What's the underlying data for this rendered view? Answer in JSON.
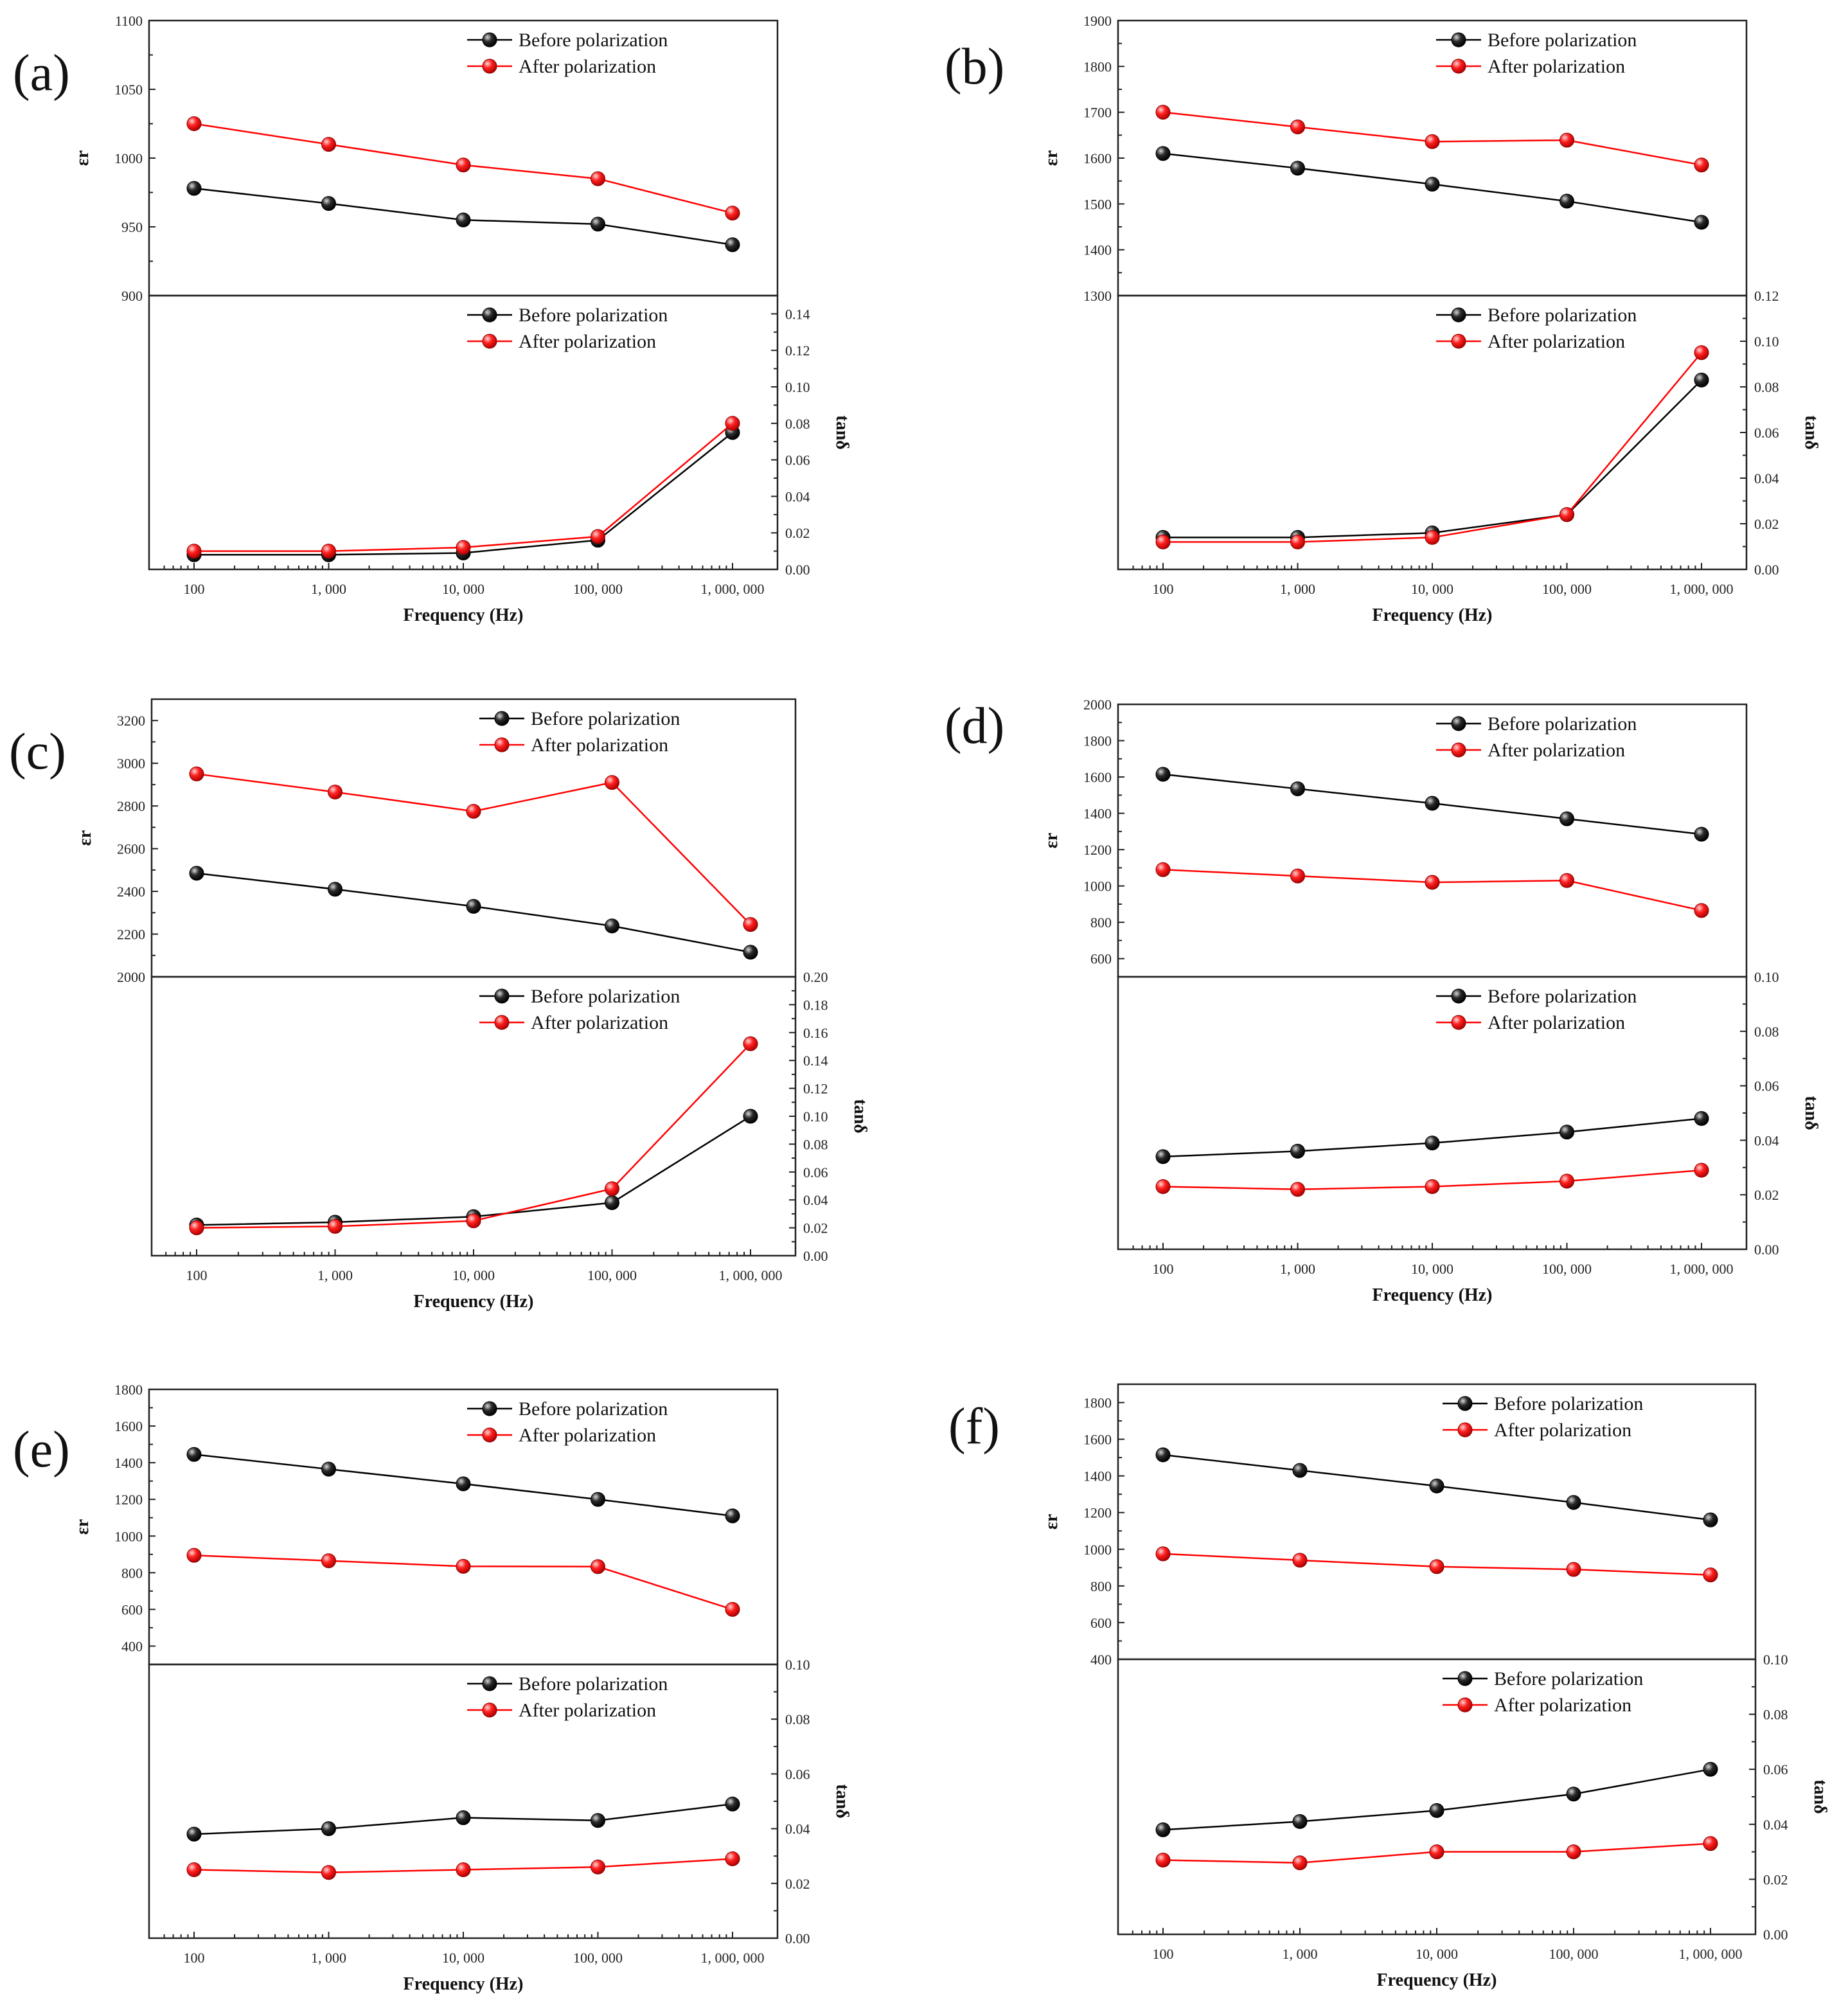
{
  "colors": {
    "before": "#000000",
    "after": "#ff0000",
    "axis": "#222222"
  },
  "chart_data": [
    {
      "panel": "(a)",
      "type": "line",
      "categories": [
        "100",
        "1, 000",
        "10, 000",
        "100, 000",
        "1, 000, 000"
      ],
      "xlabel": "Frequency (Hz)",
      "top": {
        "ylabel": "εr",
        "ylim": [
          900,
          1100
        ],
        "yticks": [
          "900",
          "950",
          "1000",
          "1050",
          "1100"
        ],
        "series": [
          {
            "name": "Before polarization",
            "values": [
              978,
              967,
              955,
              952,
              937
            ]
          },
          {
            "name": "After polarization",
            "values": [
              1025,
              1010,
              995,
              985,
              960
            ]
          }
        ]
      },
      "bottom": {
        "ylabel": "tanδ",
        "ylim": [
          0,
          0.15
        ],
        "yticks": [
          "0.00",
          "0.02",
          "0.04",
          "0.06",
          "0.08",
          "0.10",
          "0.12",
          "0.14"
        ],
        "series": [
          {
            "name": "Before polarization",
            "values": [
              0.008,
              0.008,
              0.009,
              0.016,
              0.075
            ]
          },
          {
            "name": "After polarization",
            "values": [
              0.01,
              0.01,
              0.012,
              0.018,
              0.08
            ]
          }
        ]
      }
    },
    {
      "panel": "(b)",
      "type": "line",
      "categories": [
        "100",
        "1, 000",
        "10, 000",
        "100, 000",
        "1, 000, 000"
      ],
      "xlabel": "Frequency (Hz)",
      "top": {
        "ylabel": "εr",
        "ylim": [
          1300,
          1900
        ],
        "yticks": [
          "1300",
          "1400",
          "1500",
          "1600",
          "1700",
          "1800",
          "1900"
        ],
        "series": [
          {
            "name": "Before polarization",
            "values": [
              1610,
              1578,
              1543,
              1506,
              1460
            ]
          },
          {
            "name": "After polarization",
            "values": [
              1700,
              1668,
              1636,
              1639,
              1585
            ]
          }
        ]
      },
      "bottom": {
        "ylabel": "tanδ",
        "ylim": [
          0,
          0.12
        ],
        "yticks": [
          "0.00",
          "0.02",
          "0.04",
          "0.06",
          "0.08",
          "0.10",
          "0.12"
        ],
        "series": [
          {
            "name": "Before polarization",
            "values": [
              0.014,
              0.014,
              0.016,
              0.024,
              0.083
            ]
          },
          {
            "name": "After polarization",
            "values": [
              0.012,
              0.012,
              0.014,
              0.024,
              0.095
            ]
          }
        ]
      }
    },
    {
      "panel": "(c)",
      "type": "line",
      "categories": [
        "100",
        "1, 000",
        "10, 000",
        "100, 000",
        "1, 000, 000"
      ],
      "xlabel": "Frequency (Hz)",
      "top": {
        "ylabel": "εr",
        "ylim": [
          2000,
          3300
        ],
        "yticks": [
          "2000",
          "2200",
          "2400",
          "2600",
          "2800",
          "3000",
          "3200"
        ],
        "series": [
          {
            "name": "Before polarization",
            "values": [
              2485,
              2410,
              2330,
              2238,
              2115
            ]
          },
          {
            "name": "After polarization",
            "values": [
              2950,
              2865,
              2775,
              2910,
              2245
            ]
          }
        ]
      },
      "bottom": {
        "ylabel": "tanδ",
        "ylim": [
          0,
          0.2
        ],
        "yticks": [
          "0.00",
          "0.02",
          "0.04",
          "0.06",
          "0.08",
          "0.10",
          "0.12",
          "0.14",
          "0.16",
          "0.18",
          "0.20"
        ],
        "series": [
          {
            "name": "Before polarization",
            "values": [
              0.022,
              0.024,
              0.028,
              0.038,
              0.1
            ]
          },
          {
            "name": "After polarization",
            "values": [
              0.02,
              0.021,
              0.025,
              0.048,
              0.152
            ]
          }
        ]
      }
    },
    {
      "panel": "(d)",
      "type": "line",
      "categories": [
        "100",
        "1, 000",
        "10, 000",
        "100, 000",
        "1, 000, 000"
      ],
      "xlabel": "Frequency (Hz)",
      "top": {
        "ylabel": "εr",
        "ylim": [
          500,
          2000
        ],
        "yticks": [
          "600",
          "800",
          "1000",
          "1200",
          "1400",
          "1600",
          "1800",
          "2000"
        ],
        "series": [
          {
            "name": "Before polarization",
            "values": [
              1615,
              1535,
              1455,
              1370,
              1285
            ]
          },
          {
            "name": "After polarization",
            "values": [
              1090,
              1055,
              1020,
              1030,
              865
            ]
          }
        ]
      },
      "bottom": {
        "ylabel": "tanδ",
        "ylim": [
          0,
          0.1
        ],
        "yticks": [
          "0.00",
          "0.02",
          "0.04",
          "0.06",
          "0.08",
          "0.10"
        ],
        "series": [
          {
            "name": "Before polarization",
            "values": [
              0.034,
              0.036,
              0.039,
              0.043,
              0.048
            ]
          },
          {
            "name": "After polarization",
            "values": [
              0.023,
              0.022,
              0.023,
              0.025,
              0.029
            ]
          }
        ]
      }
    },
    {
      "panel": "(e)",
      "type": "line",
      "categories": [
        "100",
        "1, 000",
        "10, 000",
        "100, 000",
        "1, 000, 000"
      ],
      "xlabel": "Frequency (Hz)",
      "top": {
        "ylabel": "εr",
        "ylim": [
          300,
          1800
        ],
        "yticks": [
          "400",
          "600",
          "800",
          "1000",
          "1200",
          "1400",
          "1600",
          "1800"
        ],
        "series": [
          {
            "name": "Before polarization",
            "values": [
              1445,
              1365,
              1285,
              1200,
              1110
            ]
          },
          {
            "name": "After polarization",
            "values": [
              895,
              865,
              835,
              833,
              600
            ]
          }
        ]
      },
      "bottom": {
        "ylabel": "tanδ",
        "ylim": [
          0,
          0.1
        ],
        "yticks": [
          "0.00",
          "0.02",
          "0.04",
          "0.06",
          "0.08",
          "0.10"
        ],
        "series": [
          {
            "name": "Before polarization",
            "values": [
              0.038,
              0.04,
              0.044,
              0.043,
              0.049
            ]
          },
          {
            "name": "After polarization",
            "values": [
              0.025,
              0.024,
              0.025,
              0.026,
              0.029
            ]
          }
        ]
      }
    },
    {
      "panel": "(f)",
      "type": "line",
      "categories": [
        "100",
        "1, 000",
        "10, 000",
        "100, 000",
        "1, 000, 000"
      ],
      "xlabel": "Frequency (Hz)",
      "top": {
        "ylabel": "εr",
        "ylim": [
          400,
          1900
        ],
        "yticks": [
          "400",
          "600",
          "800",
          "1000",
          "1200",
          "1400",
          "1600",
          "1800"
        ],
        "series": [
          {
            "name": "Before polarization",
            "values": [
              1515,
              1430,
              1345,
              1255,
              1160
            ]
          },
          {
            "name": "After polarization",
            "values": [
              975,
              940,
              905,
              890,
              860
            ]
          }
        ]
      },
      "bottom": {
        "ylabel": "tanδ",
        "ylim": [
          0,
          0.1
        ],
        "yticks": [
          "0.00",
          "0.02",
          "0.04",
          "0.06",
          "0.08",
          "0.10"
        ],
        "series": [
          {
            "name": "Before polarization",
            "values": [
              0.038,
              0.041,
              0.045,
              0.051,
              0.06
            ]
          },
          {
            "name": "After polarization",
            "values": [
              0.027,
              0.026,
              0.03,
              0.03,
              0.033
            ]
          }
        ]
      }
    }
  ]
}
